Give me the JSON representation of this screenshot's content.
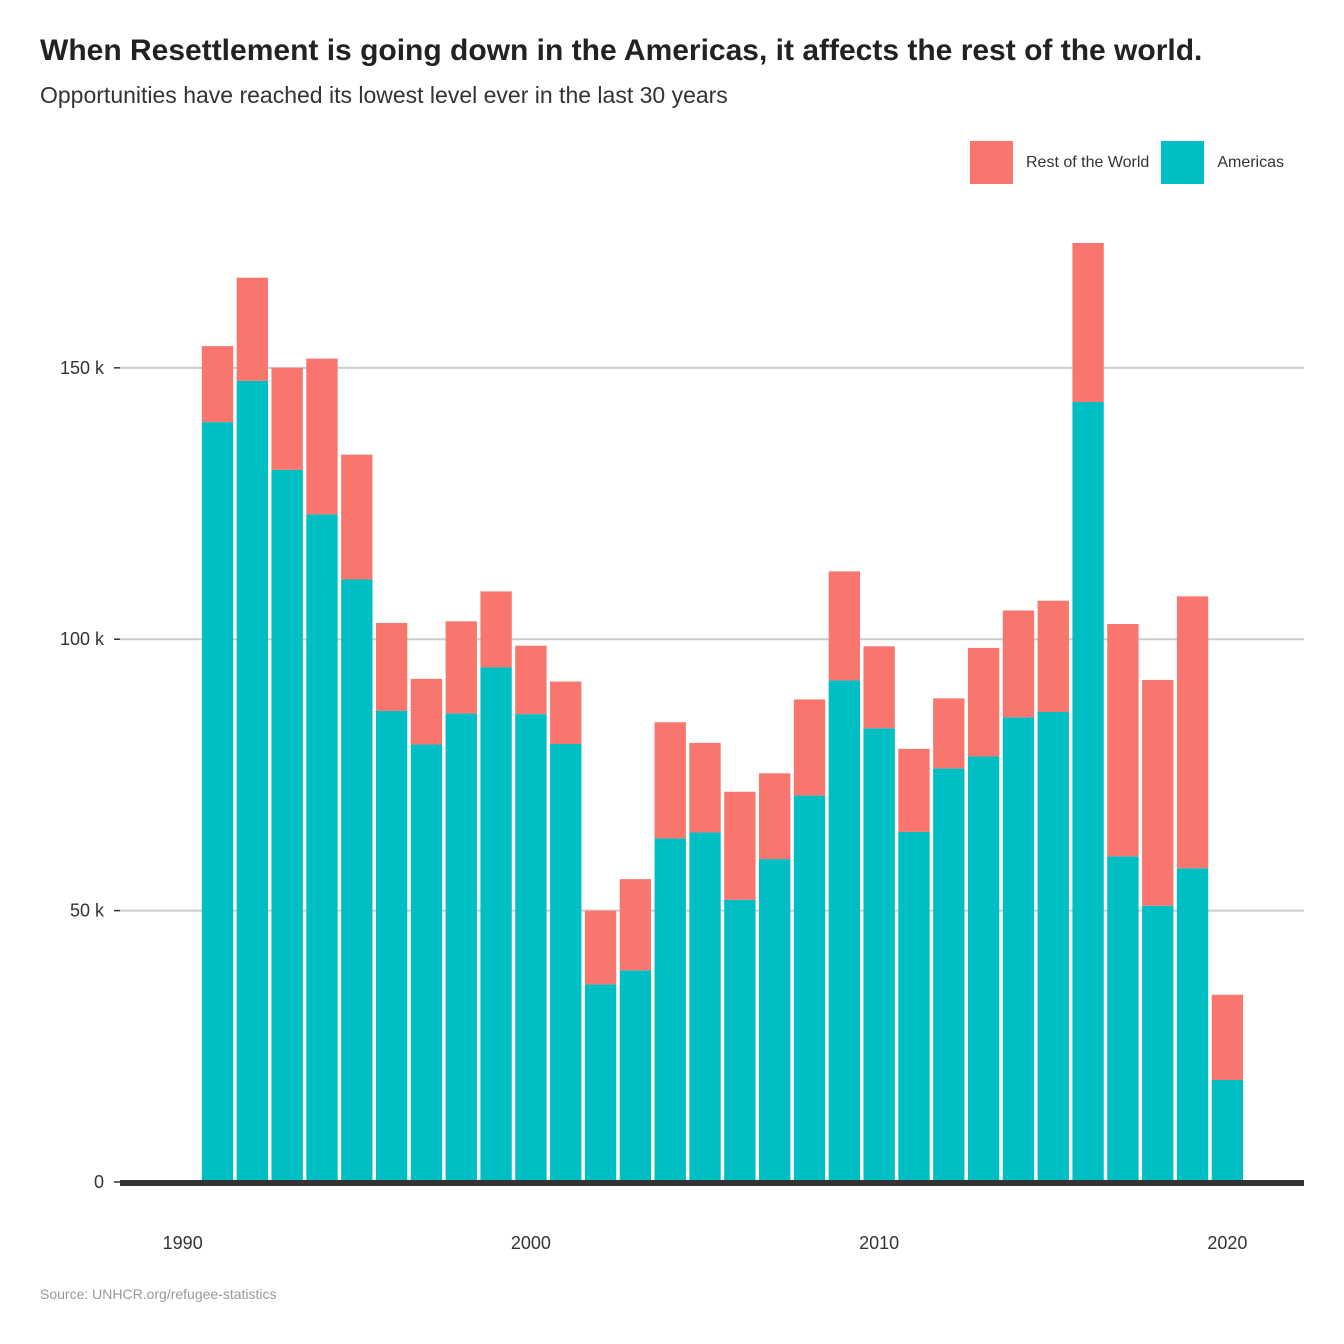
{
  "title": "When Resettlement is going down in the Americas, it affects the rest of the world.",
  "subtitle": "Opportunities have reached its lowest level ever in the last 30 years",
  "source": "Source: UNHCR.org/refugee-statistics",
  "colors": {
    "rest_of_world": "#F8766D",
    "americas": "#00BFC4",
    "grid": "#cccccc",
    "baseline": "#333333"
  },
  "legend": [
    {
      "label": "Rest of the World",
      "color": "#F8766D"
    },
    {
      "label": "Americas",
      "color": "#00BFC4"
    }
  ],
  "chart_data": {
    "type": "bar",
    "stacked": true,
    "x": [
      1991,
      1992,
      1993,
      1994,
      1995,
      1996,
      1997,
      1998,
      1999,
      2000,
      2001,
      2002,
      2003,
      2004,
      2005,
      2006,
      2007,
      2008,
      2009,
      2010,
      2011,
      2012,
      2013,
      2014,
      2015,
      2016,
      2017,
      2018,
      2019,
      2020
    ],
    "series": [
      {
        "name": "Americas",
        "color": "#00BFC4",
        "values": [
          140000,
          147600,
          131200,
          123000,
          111000,
          86800,
          80600,
          86300,
          94800,
          86200,
          80700,
          36400,
          39000,
          63300,
          64400,
          52000,
          59500,
          71200,
          92400,
          83600,
          64500,
          76200,
          78400,
          85600,
          86600,
          143700,
          60000,
          50900,
          57800,
          18800
        ]
      },
      {
        "name": "Rest of the World",
        "color": "#F8766D",
        "values": [
          14000,
          19000,
          18800,
          28700,
          23000,
          16200,
          12100,
          17000,
          14000,
          12600,
          11500,
          13600,
          16800,
          21400,
          16500,
          19900,
          15800,
          17700,
          20100,
          15100,
          15300,
          12900,
          20000,
          19700,
          20500,
          29300,
          42800,
          41600,
          50100,
          15700
        ]
      }
    ],
    "x_ticks": [
      {
        "value": 1990,
        "label": "1990"
      },
      {
        "value": 2000,
        "label": "2000"
      },
      {
        "value": 2010,
        "label": "2010"
      },
      {
        "value": 2020,
        "label": "2020"
      }
    ],
    "y_ticks": [
      {
        "value": 0,
        "label": "0"
      },
      {
        "value": 50000,
        "label": "50 k"
      },
      {
        "value": 100000,
        "label": "100 k"
      },
      {
        "value": 150000,
        "label": "150 k"
      }
    ],
    "xlim": [
      1988.2,
      2022.2
    ],
    "ylim": [
      0,
      180000
    ],
    "grid": true,
    "legend_position": "top-right"
  }
}
